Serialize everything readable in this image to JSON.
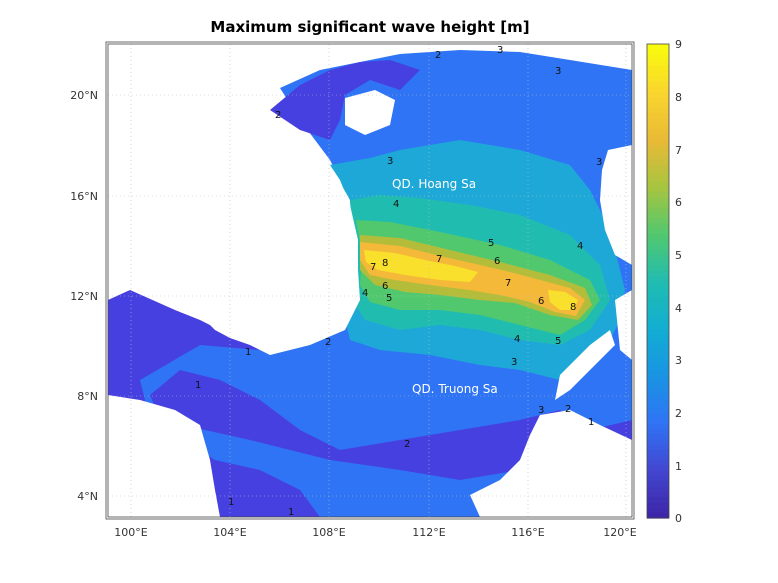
{
  "title": "Maximum significant wave height [m]",
  "x_ticks": [
    "100°E",
    "104°E",
    "108°E",
    "112°E",
    "116°E",
    "120°E"
  ],
  "y_ticks": [
    "20°N",
    "16°N",
    "12°N",
    "8°N",
    "4°N"
  ],
  "colorbar_ticks": [
    "0",
    "1",
    "2",
    "3",
    "4",
    "5",
    "6",
    "7",
    "8",
    "9"
  ],
  "place_labels": {
    "hoang_sa": "QD. Hoang Sa",
    "truong_sa": "QD. Truong Sa"
  },
  "contour_labels": [
    "1",
    "1",
    "1",
    "1",
    "1",
    "2",
    "2",
    "2",
    "2",
    "2",
    "3",
    "3",
    "3",
    "3",
    "3",
    "3",
    "4",
    "4",
    "4",
    "4",
    "5",
    "5",
    "5",
    "6",
    "6",
    "6",
    "7",
    "7",
    "7",
    "8",
    "8"
  ],
  "colors": {
    "level_0": "#3e26a8",
    "level_1": "#4740e0",
    "level_2": "#2f74f5",
    "level_3": "#1ea8d8",
    "level_4": "#21bcb0",
    "level_5": "#51c86e",
    "level_6": "#b4bd3a",
    "level_7": "#f5b93a",
    "level_8": "#f9e02c",
    "land": "#ffffff"
  },
  "chart_data": {
    "type": "heatmap",
    "title": "Maximum significant wave height [m]",
    "xlabel": "",
    "ylabel": "",
    "xlim": [
      99,
      120.5
    ],
    "ylim": [
      3,
      22
    ],
    "x_ticks_deg_E": [
      100,
      104,
      108,
      112,
      116,
      120
    ],
    "y_ticks_deg_N": [
      20,
      16,
      12,
      8,
      4
    ],
    "colorbar": {
      "min": 0,
      "max": 9,
      "colormap": "parula",
      "label": ""
    },
    "grid": true,
    "max_region": {
      "lon_range": [
        109.5,
        118
      ],
      "lat_range": [
        11.5,
        14
      ],
      "peak_value": 8
    }
  }
}
